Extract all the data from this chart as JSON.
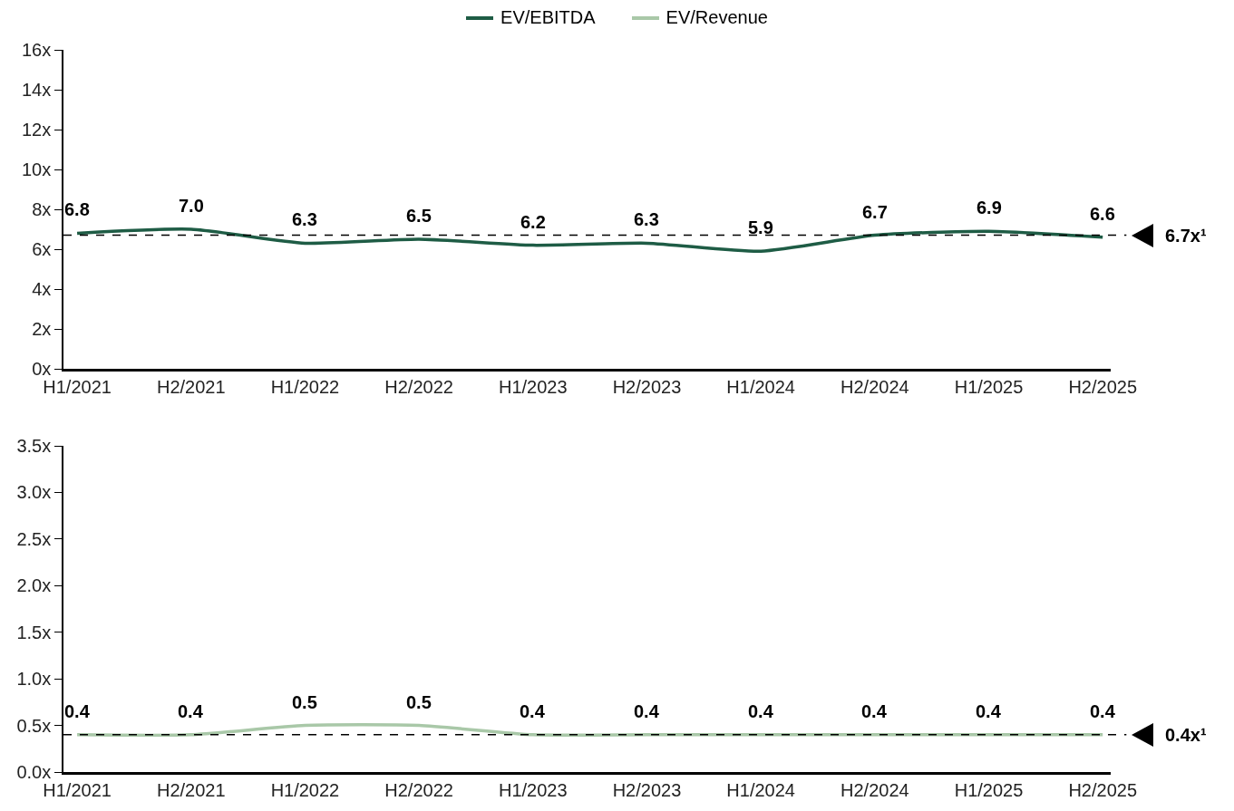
{
  "chart_data": [
    {
      "type": "line",
      "categories": [
        "H1/2021",
        "H2/2021",
        "H1/2022",
        "H2/2022",
        "H1/2023",
        "H2/2023",
        "H1/2024",
        "H2/2024",
        "H1/2025",
        "H2/2025"
      ],
      "series": [
        {
          "name": "EV/EBITDA",
          "color": "#1e5c45",
          "values": [
            6.8,
            7.0,
            6.3,
            6.5,
            6.2,
            6.3,
            5.9,
            6.7,
            6.9,
            6.6
          ],
          "value_labels": [
            "6.8",
            "7.0",
            "6.3",
            "6.5",
            "6.2",
            "6.3",
            "5.9",
            "6.7",
            "6.9",
            "6.6"
          ]
        }
      ],
      "ylim": [
        0,
        16
      ],
      "yticks": [
        {
          "value": 0,
          "label": "0x"
        },
        {
          "value": 2,
          "label": "2x"
        },
        {
          "value": 4,
          "label": "4x"
        },
        {
          "value": 6,
          "label": "6x"
        },
        {
          "value": 8,
          "label": "8x"
        },
        {
          "value": 10,
          "label": "10x"
        },
        {
          "value": 12,
          "label": "12x"
        },
        {
          "value": 14,
          "label": "14x"
        },
        {
          "value": 16,
          "label": "16x"
        }
      ],
      "ref_lines": [
        {
          "axis": "y",
          "value": 6.7,
          "label": "6.7x¹",
          "line_style": "dashed",
          "color": "#000000"
        }
      ],
      "grid": false,
      "legend": "top",
      "marker": "none",
      "line_style": "solid"
    },
    {
      "type": "line",
      "categories": [
        "H1/2021",
        "H2/2021",
        "H1/2022",
        "H2/2022",
        "H1/2023",
        "H2/2023",
        "H1/2024",
        "H2/2024",
        "H1/2025",
        "H2/2025"
      ],
      "series": [
        {
          "name": "EV/Revenue",
          "color": "#a9c8a8",
          "values": [
            0.4,
            0.4,
            0.5,
            0.5,
            0.4,
            0.4,
            0.4,
            0.4,
            0.4,
            0.4
          ],
          "value_labels": [
            "0.4",
            "0.4",
            "0.5",
            "0.5",
            "0.4",
            "0.4",
            "0.4",
            "0.4",
            "0.4",
            "0.4"
          ]
        }
      ],
      "ylim": [
        0,
        3.5
      ],
      "yticks": [
        {
          "value": 0,
          "label": "0.0x"
        },
        {
          "value": 0.5,
          "label": "0.5x"
        },
        {
          "value": 1,
          "label": "1.0x"
        },
        {
          "value": 1.5,
          "label": "1.5x"
        },
        {
          "value": 2,
          "label": "2.0x"
        },
        {
          "value": 2.5,
          "label": "2.5x"
        },
        {
          "value": 3,
          "label": "3.0x"
        },
        {
          "value": 3.5,
          "label": "3.5x"
        }
      ],
      "ref_lines": [
        {
          "axis": "y",
          "value": 0.4,
          "label": "0.4x¹",
          "line_style": "dashed",
          "color": "#000000"
        }
      ],
      "grid": false,
      "legend": "top",
      "marker": "none",
      "line_style": "solid"
    }
  ]
}
